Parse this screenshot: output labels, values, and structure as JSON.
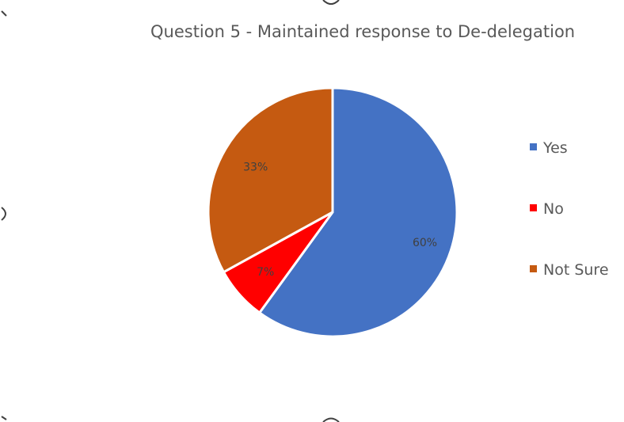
{
  "chart_data": {
    "type": "pie",
    "title": "Question 5 - Maintained response to De-delegation",
    "categories": [
      "Yes",
      "No",
      "Not Sure"
    ],
    "values": [
      60,
      7,
      33
    ],
    "data_labels": [
      "60%",
      "7%",
      "33%"
    ],
    "colors": [
      "#4472C4",
      "#FF0000",
      "#C55A11"
    ],
    "start_angle_deg": 0,
    "direction": "clockwise",
    "legend_position": "right"
  }
}
